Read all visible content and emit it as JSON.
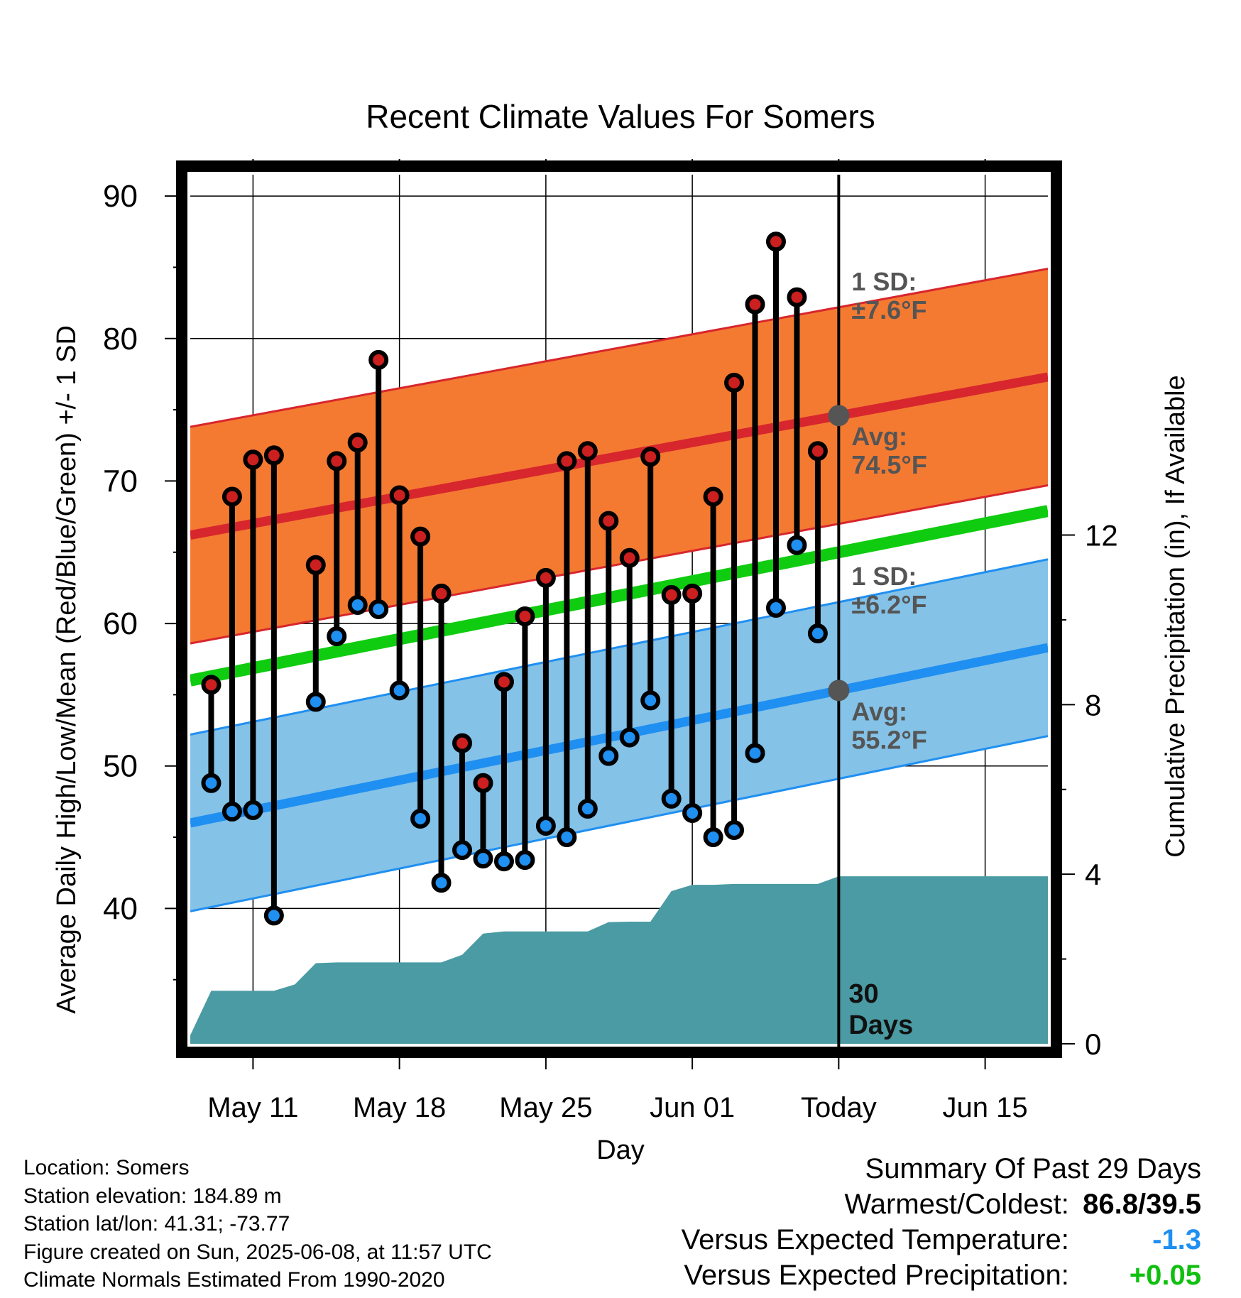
{
  "chart_data": {
    "type": "line",
    "title": "Recent Climate Values For Somers",
    "xlabel": "Day",
    "ylabel": "Average Daily High/Low/Mean (Red/Blue/Green) +/- 1 SD",
    "ylabel_right": "Cumulative Precipitation (in), If Available",
    "ylim": [
      30.5,
      91.5
    ],
    "ylim_right": [
      0,
      20.5
    ],
    "yticks": [
      40,
      50,
      60,
      70,
      80,
      90
    ],
    "yticks_right": [
      0,
      4,
      8,
      12
    ],
    "xticks": [
      "May 11",
      "May 18",
      "May 25",
      "Jun 01",
      "Today",
      "Jun 15"
    ],
    "xlim": [
      "2025-05-08",
      "2025-06-18"
    ],
    "grid": true,
    "today": "2025-06-08",
    "today_label": "30\nDays",
    "normals": {
      "high": {
        "avg_start": 66.2,
        "avg_end": 77.3,
        "sd": 7.6,
        "color": "#d7262d",
        "band_color": "#f47a32"
      },
      "low": {
        "avg_start": 46.0,
        "avg_end": 58.3,
        "sd": 6.2,
        "color": "#1f8ff1",
        "band_color": "#84c2e8"
      },
      "mean": {
        "start": 56.0,
        "end": 67.9,
        "color": "#10cc10"
      }
    },
    "annotations": [
      {
        "line1": "1 SD:",
        "line2": "±7.6°F",
        "series": "high",
        "kind": "sd"
      },
      {
        "line1": "Avg:",
        "line2": "74.5°F",
        "series": "high",
        "kind": "avg",
        "value": 74.5
      },
      {
        "line1": "1 SD:",
        "line2": "±6.2°F",
        "series": "low",
        "kind": "sd"
      },
      {
        "line1": "Avg:",
        "line2": "55.2°F",
        "series": "low",
        "kind": "avg",
        "value": 55.2
      }
    ],
    "series": [
      {
        "name": "Daily High",
        "color": "#cc1f1f",
        "x": [
          "2025-05-09",
          "2025-05-10",
          "2025-05-11",
          "2025-05-12",
          "2025-05-14",
          "2025-05-15",
          "2025-05-16",
          "2025-05-17",
          "2025-05-18",
          "2025-05-19",
          "2025-05-20",
          "2025-05-21",
          "2025-05-22",
          "2025-05-23",
          "2025-05-24",
          "2025-05-25",
          "2025-05-26",
          "2025-05-27",
          "2025-05-28",
          "2025-05-29",
          "2025-05-30",
          "2025-05-31",
          "2025-06-01",
          "2025-06-02",
          "2025-06-03",
          "2025-06-04",
          "2025-06-05",
          "2025-06-06",
          "2025-06-07"
        ],
        "values": [
          55.7,
          68.9,
          71.5,
          71.8,
          64.1,
          71.4,
          72.7,
          78.5,
          69.0,
          66.1,
          62.1,
          51.6,
          48.8,
          55.9,
          60.5,
          63.2,
          71.4,
          72.1,
          67.2,
          64.6,
          71.7,
          62.0,
          62.1,
          68.9,
          76.9,
          82.4,
          86.8,
          82.9,
          72.1
        ]
      },
      {
        "name": "Daily Low",
        "color": "#1f8ff1",
        "x": [
          "2025-05-09",
          "2025-05-10",
          "2025-05-11",
          "2025-05-12",
          "2025-05-14",
          "2025-05-15",
          "2025-05-16",
          "2025-05-17",
          "2025-05-18",
          "2025-05-19",
          "2025-05-20",
          "2025-05-21",
          "2025-05-22",
          "2025-05-23",
          "2025-05-24",
          "2025-05-25",
          "2025-05-26",
          "2025-05-27",
          "2025-05-28",
          "2025-05-29",
          "2025-05-30",
          "2025-05-31",
          "2025-06-01",
          "2025-06-02",
          "2025-06-03",
          "2025-06-04",
          "2025-06-05",
          "2025-06-06",
          "2025-06-07"
        ],
        "values": [
          48.8,
          46.8,
          46.9,
          39.5,
          54.5,
          59.1,
          61.3,
          61.0,
          55.3,
          46.3,
          41.8,
          44.1,
          43.5,
          43.3,
          43.4,
          45.8,
          45.0,
          47.0,
          50.7,
          52.0,
          54.6,
          47.7,
          46.7,
          45.0,
          45.5,
          50.9,
          61.1,
          65.5,
          59.3
        ]
      },
      {
        "name": "Cumulative Precipitation",
        "color": "#4a9ba3",
        "x": [
          "2025-05-08",
          "2025-05-09",
          "2025-05-10",
          "2025-05-11",
          "2025-05-12",
          "2025-05-13",
          "2025-05-14",
          "2025-05-15",
          "2025-05-16",
          "2025-05-17",
          "2025-05-18",
          "2025-05-19",
          "2025-05-20",
          "2025-05-21",
          "2025-05-22",
          "2025-05-23",
          "2025-05-24",
          "2025-05-25",
          "2025-05-26",
          "2025-05-27",
          "2025-05-28",
          "2025-05-29",
          "2025-05-30",
          "2025-05-31",
          "2025-06-01",
          "2025-06-02",
          "2025-06-03",
          "2025-06-04",
          "2025-06-05",
          "2025-06-06",
          "2025-06-07",
          "2025-06-08",
          "2025-06-18"
        ],
        "values": [
          0.2,
          1.25,
          1.25,
          1.25,
          1.25,
          1.4,
          1.9,
          1.92,
          1.92,
          1.92,
          1.92,
          1.92,
          1.92,
          2.1,
          2.6,
          2.65,
          2.65,
          2.65,
          2.65,
          2.65,
          2.87,
          2.88,
          2.88,
          3.6,
          3.75,
          3.75,
          3.77,
          3.77,
          3.77,
          3.77,
          3.77,
          3.95,
          3.95
        ]
      }
    ]
  },
  "info": {
    "location": "Location: Somers",
    "elevation": "Station elevation: 184.89 m",
    "latlon": "Station lat/lon: 41.31; -73.77",
    "created": "Figure created on Sun, 2025-06-08, at 11:57 UTC",
    "normals": "Climate Normals Estimated From 1990-2020"
  },
  "summary": {
    "heading": "Summary Of Past 29 Days",
    "warm_label": "Warmest/Coldest:",
    "warm_value": "86.8/39.5",
    "temp_label": "Versus Expected Temperature:",
    "temp_value": "-1.3",
    "temp_color": "#1f8ff1",
    "precip_label": "Versus Expected Precipitation:",
    "precip_value": "+0.05",
    "precip_color": "#10c010"
  }
}
